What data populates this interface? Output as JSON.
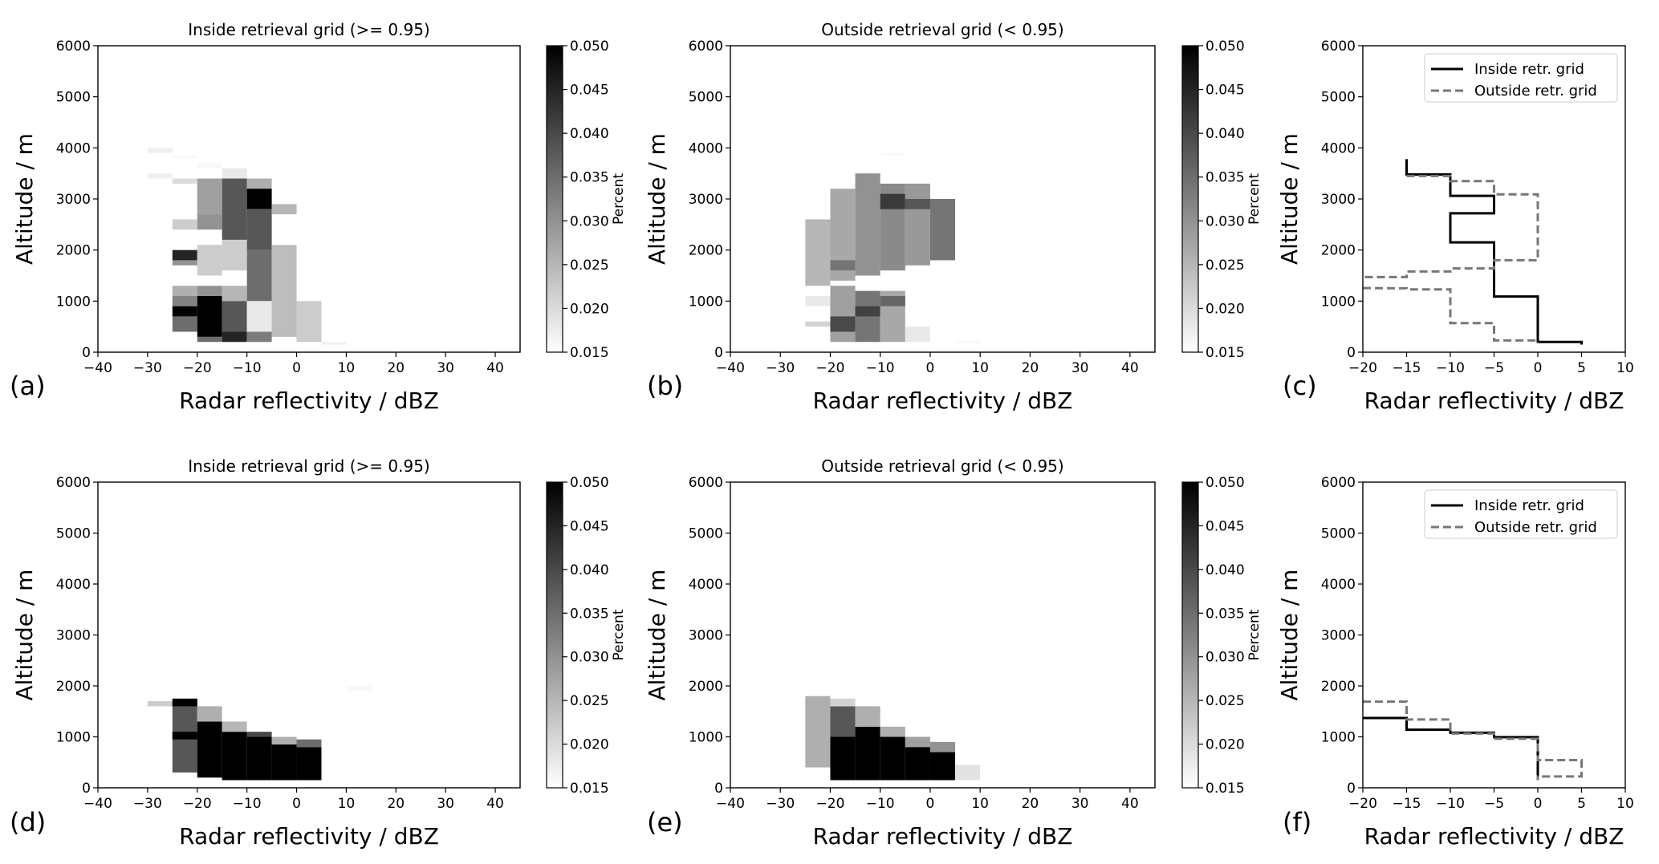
{
  "colormap": {
    "name": "Greys",
    "low_color": "#ffffff",
    "high_color": "#000000"
  },
  "chart_data": [
    {
      "panel_label": "(a)",
      "type": "heatmap",
      "title": "Inside retrieval grid (>= 0.95)",
      "xlabel": "Radar reflectivity / dBZ",
      "ylabel": "Altitude / m",
      "xlim": [
        -40,
        45
      ],
      "ylim": [
        0,
        6000
      ],
      "xticks": [
        -40,
        -30,
        -20,
        -10,
        0,
        10,
        20,
        30,
        40
      ],
      "yticks": [
        0,
        1000,
        2000,
        3000,
        4000,
        5000,
        6000
      ],
      "bin_width_dbz": 5,
      "colorbar": {
        "label": "Percent",
        "range": [
          0.015,
          0.05
        ],
        "ticks": [
          "0.015",
          "0.020",
          "0.025",
          "0.030",
          "0.035",
          "0.040",
          "0.045",
          "0.050"
        ]
      },
      "cells": [
        [
          -30,
          3900,
          4000,
          0.017
        ],
        [
          -30,
          3400,
          3500,
          0.017
        ],
        [
          -25,
          3800,
          3850,
          0.016
        ],
        [
          -25,
          3300,
          3400,
          0.02
        ],
        [
          -25,
          2400,
          2600,
          0.022
        ],
        [
          -25,
          1700,
          1800,
          0.03
        ],
        [
          -25,
          1800,
          2000,
          0.045
        ],
        [
          -25,
          1100,
          1300,
          0.026
        ],
        [
          -25,
          900,
          1100,
          0.032
        ],
        [
          -25,
          700,
          900,
          0.05
        ],
        [
          -25,
          400,
          700,
          0.035
        ],
        [
          -20,
          3600,
          3700,
          0.016
        ],
        [
          -20,
          2700,
          3400,
          0.028
        ],
        [
          -20,
          2400,
          2700,
          0.03
        ],
        [
          -20,
          1500,
          2100,
          0.022
        ],
        [
          -20,
          1100,
          1300,
          0.03
        ],
        [
          -20,
          300,
          1100,
          0.05
        ],
        [
          -20,
          200,
          300,
          0.035
        ],
        [
          -15,
          3400,
          3600,
          0.018
        ],
        [
          -15,
          2200,
          3400,
          0.038
        ],
        [
          -15,
          1600,
          2200,
          0.022
        ],
        [
          -15,
          1000,
          1300,
          0.025
        ],
        [
          -15,
          400,
          1000,
          0.038
        ],
        [
          -15,
          200,
          400,
          0.045
        ],
        [
          -10,
          3200,
          3400,
          0.026
        ],
        [
          -10,
          2800,
          3200,
          0.05
        ],
        [
          -10,
          2000,
          2800,
          0.038
        ],
        [
          -10,
          1000,
          2000,
          0.035
        ],
        [
          -10,
          400,
          1000,
          0.018
        ],
        [
          -10,
          200,
          400,
          0.033
        ],
        [
          -5,
          2700,
          2900,
          0.025
        ],
        [
          -5,
          300,
          2100,
          0.024
        ],
        [
          0,
          200,
          1000,
          0.022
        ],
        [
          5,
          150,
          200,
          0.017
        ]
      ]
    },
    {
      "panel_label": "(b)",
      "type": "heatmap",
      "title": "Outside retrieval grid (< 0.95)",
      "xlabel": "Radar reflectivity / dBZ",
      "ylabel": "Altitude / m",
      "xlim": [
        -40,
        45
      ],
      "ylim": [
        0,
        6000
      ],
      "xticks": [
        -40,
        -30,
        -20,
        -10,
        0,
        10,
        20,
        30,
        40
      ],
      "yticks": [
        0,
        1000,
        2000,
        3000,
        4000,
        5000,
        6000
      ],
      "bin_width_dbz": 5,
      "colorbar": {
        "label": "Percent",
        "range": [
          0.015,
          0.05
        ],
        "ticks": [
          "0.015",
          "0.020",
          "0.025",
          "0.030",
          "0.035",
          "0.040",
          "0.045",
          "0.050"
        ]
      },
      "cells": [
        [
          -25,
          1300,
          2600,
          0.025
        ],
        [
          -25,
          500,
          600,
          0.021
        ],
        [
          -25,
          900,
          1100,
          0.018
        ],
        [
          -20,
          1400,
          3200,
          0.027
        ],
        [
          -20,
          1600,
          1800,
          0.034
        ],
        [
          -20,
          200,
          1300,
          0.028
        ],
        [
          -20,
          400,
          700,
          0.04
        ],
        [
          -15,
          1500,
          3500,
          0.03
        ],
        [
          -15,
          200,
          1200,
          0.034
        ],
        [
          -15,
          700,
          900,
          0.041
        ],
        [
          -10,
          1600,
          3300,
          0.031
        ],
        [
          -10,
          2800,
          3100,
          0.042
        ],
        [
          -10,
          200,
          1200,
          0.027
        ],
        [
          -10,
          900,
          1100,
          0.036
        ],
        [
          -10,
          3850,
          3900,
          0.016
        ],
        [
          -5,
          1700,
          3300,
          0.029
        ],
        [
          -5,
          2800,
          3000,
          0.038
        ],
        [
          -5,
          200,
          500,
          0.018
        ],
        [
          0,
          1800,
          3000,
          0.034
        ],
        [
          5,
          180,
          220,
          0.016
        ]
      ]
    },
    {
      "panel_label": "(c)",
      "type": "line",
      "xlabel": "Radar reflectivity / dBZ",
      "ylabel": "Altitude / m",
      "xlim": [
        -20,
        10
      ],
      "ylim": [
        0,
        6000
      ],
      "xticks": [
        -20,
        -15,
        -10,
        -5,
        0,
        5,
        10
      ],
      "yticks": [
        0,
        1000,
        2000,
        3000,
        4000,
        5000,
        6000
      ],
      "legend_position": "top-right",
      "series": [
        {
          "name": "Inside retr. grid",
          "style": "solid",
          "color": "#000000",
          "points": [
            [
              -15,
              3780
            ],
            [
              -15,
              3480
            ],
            [
              -10,
              3480
            ],
            [
              -10,
              3060
            ],
            [
              -5,
              3060
            ],
            [
              -5,
              2720
            ],
            [
              -10,
              2720
            ],
            [
              -10,
              2150
            ],
            [
              -5,
              2150
            ],
            [
              -5,
              1090
            ],
            [
              0,
              1090
            ],
            [
              0,
              200
            ],
            [
              5,
              200
            ],
            [
              5,
              150
            ]
          ]
        },
        {
          "name": "Outside retr. grid",
          "style": "dashed",
          "color": "#777777",
          "points": [
            [
              -15,
              3450
            ],
            [
              -10,
              3450
            ],
            [
              -10,
              3350
            ],
            [
              -5,
              3350
            ],
            [
              -5,
              3090
            ],
            [
              0,
              3090
            ],
            [
              0,
              1800
            ],
            [
              -5,
              1800
            ],
            [
              -5,
              1640
            ],
            [
              -10,
              1640
            ],
            [
              -10,
              1580
            ],
            [
              -15,
              1580
            ],
            [
              -15,
              1470
            ],
            [
              -25,
              1470
            ],
            [
              -25,
              1260
            ],
            [
              -15,
              1250
            ],
            [
              -15,
              1230
            ],
            [
              -10,
              1230
            ],
            [
              -10,
              570
            ],
            [
              -5,
              570
            ],
            [
              -5,
              230
            ],
            [
              0,
              230
            ],
            [
              0,
              170
            ]
          ]
        }
      ]
    },
    {
      "panel_label": "(d)",
      "type": "heatmap",
      "title": "Inside retrieval grid (>= 0.95)",
      "xlabel": "Radar reflectivity / dBZ",
      "ylabel": "Altitude / m",
      "xlim": [
        -40,
        45
      ],
      "ylim": [
        0,
        6000
      ],
      "xticks": [
        -40,
        -30,
        -20,
        -10,
        0,
        10,
        20,
        30,
        40
      ],
      "yticks": [
        0,
        1000,
        2000,
        3000,
        4000,
        5000,
        6000
      ],
      "bin_width_dbz": 5,
      "colorbar": {
        "label": "Percent",
        "range": [
          0.015,
          0.05
        ],
        "ticks": [
          "0.015",
          "0.020",
          "0.025",
          "0.030",
          "0.035",
          "0.040",
          "0.045",
          "0.050"
        ]
      },
      "cells": [
        [
          -30,
          1600,
          1700,
          0.022
        ],
        [
          -25,
          300,
          1750,
          0.038
        ],
        [
          -25,
          950,
          1100,
          0.05
        ],
        [
          -25,
          1600,
          1750,
          0.05
        ],
        [
          -20,
          200,
          1300,
          0.05
        ],
        [
          -20,
          1300,
          1600,
          0.026
        ],
        [
          -15,
          150,
          1100,
          0.05
        ],
        [
          -15,
          1100,
          1300,
          0.025
        ],
        [
          -10,
          150,
          1000,
          0.05
        ],
        [
          -10,
          1000,
          1100,
          0.04
        ],
        [
          -5,
          150,
          850,
          0.05
        ],
        [
          -5,
          850,
          1000,
          0.026
        ],
        [
          0,
          150,
          800,
          0.05
        ],
        [
          0,
          800,
          950,
          0.035
        ],
        [
          10,
          1900,
          2000,
          0.016
        ]
      ]
    },
    {
      "panel_label": "(e)",
      "type": "heatmap",
      "title": "Outside retrieval grid (< 0.95)",
      "xlabel": "Radar reflectivity / dBZ",
      "ylabel": "Altitude / m",
      "xlim": [
        -40,
        45
      ],
      "ylim": [
        0,
        6000
      ],
      "xticks": [
        -40,
        -30,
        -20,
        -10,
        0,
        10,
        20,
        30,
        40
      ],
      "yticks": [
        0,
        1000,
        2000,
        3000,
        4000,
        5000,
        6000
      ],
      "bin_width_dbz": 5,
      "colorbar": {
        "label": "Percent",
        "range": [
          0.015,
          0.05
        ],
        "ticks": [
          "0.015",
          "0.020",
          "0.025",
          "0.030",
          "0.035",
          "0.040",
          "0.045",
          "0.050"
        ]
      },
      "cells": [
        [
          -25,
          400,
          1800,
          0.026
        ],
        [
          -20,
          150,
          1000,
          0.05
        ],
        [
          -20,
          1000,
          1600,
          0.038
        ],
        [
          -20,
          1600,
          1750,
          0.021
        ],
        [
          -15,
          150,
          1200,
          0.05
        ],
        [
          -15,
          1200,
          1600,
          0.026
        ],
        [
          -10,
          150,
          1000,
          0.05
        ],
        [
          -10,
          1000,
          1200,
          0.026
        ],
        [
          -5,
          150,
          800,
          0.05
        ],
        [
          -5,
          800,
          1000,
          0.028
        ],
        [
          0,
          150,
          700,
          0.05
        ],
        [
          0,
          700,
          900,
          0.03
        ],
        [
          5,
          150,
          450,
          0.019
        ]
      ]
    },
    {
      "panel_label": "(f)",
      "type": "line",
      "xlabel": "Radar reflectivity / dBZ",
      "ylabel": "Altitude / m",
      "xlim": [
        -20,
        10
      ],
      "ylim": [
        0,
        6000
      ],
      "xticks": [
        -20,
        -15,
        -10,
        -5,
        0,
        5,
        10
      ],
      "yticks": [
        0,
        1000,
        2000,
        3000,
        4000,
        5000,
        6000
      ],
      "legend_position": "top-right",
      "series": [
        {
          "name": "Inside retr. grid",
          "style": "solid",
          "color": "#000000",
          "points": [
            [
              -20,
              1370
            ],
            [
              -15,
              1370
            ],
            [
              -15,
              1140
            ],
            [
              -10,
              1140
            ],
            [
              -10,
              1080
            ],
            [
              -5,
              1080
            ],
            [
              -5,
              995
            ],
            [
              0,
              995
            ],
            [
              0,
              150
            ]
          ]
        },
        {
          "name": "Outside retr. grid",
          "style": "dashed",
          "color": "#777777",
          "points": [
            [
              -20,
              1690
            ],
            [
              -15,
              1690
            ],
            [
              -15,
              1340
            ],
            [
              -10,
              1340
            ],
            [
              -10,
              1065
            ],
            [
              -5,
              1065
            ],
            [
              -5,
              963
            ],
            [
              0,
              963
            ],
            [
              0,
              543
            ],
            [
              5,
              543
            ],
            [
              5,
              223
            ],
            [
              0,
              223
            ],
            [
              0,
              150
            ]
          ]
        }
      ]
    }
  ]
}
